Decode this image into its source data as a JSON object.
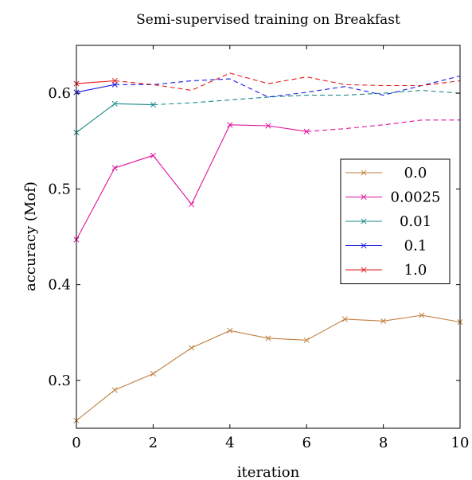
{
  "chart_data": {
    "type": "line",
    "title": "Semi-supervised training on Breakfast",
    "xlabel": "iteration",
    "ylabel": "accuracy (Mof)",
    "xlim": [
      0,
      10
    ],
    "ylim": [
      0.25,
      0.65
    ],
    "xticks": [
      0,
      2,
      4,
      6,
      8,
      10
    ],
    "yticks": [
      0.3,
      0.4,
      0.5,
      0.6
    ],
    "ytick_labels": [
      "0.3",
      "0.4",
      "0.5",
      "0.6"
    ],
    "legend_position": "right",
    "grid": false,
    "series": [
      {
        "name": "0.0",
        "color": "#bf8040",
        "solid_x": [
          0,
          1,
          2,
          3,
          4,
          5,
          6,
          7,
          8,
          9,
          10
        ],
        "solid_y": [
          0.258,
          0.29,
          0.307,
          0.334,
          0.352,
          0.344,
          0.342,
          0.364,
          0.362,
          0.368,
          0.361
        ],
        "dashed_x": [],
        "dashed_y": []
      },
      {
        "name": "0.0025",
        "color": "#e0109a",
        "solid_x": [
          0,
          1,
          2,
          3,
          4,
          5,
          6
        ],
        "solid_y": [
          0.447,
          0.522,
          0.535,
          0.484,
          0.567,
          0.566,
          0.56
        ],
        "dashed_x": [
          6,
          7,
          8,
          9,
          10
        ],
        "dashed_y": [
          0.56,
          0.563,
          0.567,
          0.572,
          0.572
        ]
      },
      {
        "name": "0.01",
        "color": "#1a8a8a",
        "solid_x": [
          0,
          1,
          2
        ],
        "solid_y": [
          0.559,
          0.589,
          0.588
        ],
        "dashed_x": [
          2,
          3,
          4,
          5,
          6,
          7,
          8,
          9,
          10
        ],
        "dashed_y": [
          0.588,
          0.59,
          0.593,
          0.596,
          0.598,
          0.598,
          0.6,
          0.603,
          0.6
        ]
      },
      {
        "name": "0.1",
        "color": "#1a1ae6",
        "solid_x": [
          0,
          1
        ],
        "solid_y": [
          0.601,
          0.609
        ],
        "dashed_x": [
          1,
          2,
          3,
          4,
          5,
          6,
          7,
          8,
          9,
          10
        ],
        "dashed_y": [
          0.609,
          0.609,
          0.613,
          0.615,
          0.596,
          0.601,
          0.607,
          0.598,
          0.608,
          0.618
        ]
      },
      {
        "name": "1.0",
        "color": "#e61a1a",
        "solid_x": [
          0,
          1
        ],
        "solid_y": [
          0.61,
          0.613
        ],
        "dashed_x": [
          1,
          2,
          3,
          4,
          5,
          6,
          7,
          8,
          9,
          10
        ],
        "dashed_y": [
          0.613,
          0.609,
          0.603,
          0.621,
          0.61,
          0.617,
          0.609,
          0.608,
          0.608,
          0.613
        ]
      }
    ]
  }
}
